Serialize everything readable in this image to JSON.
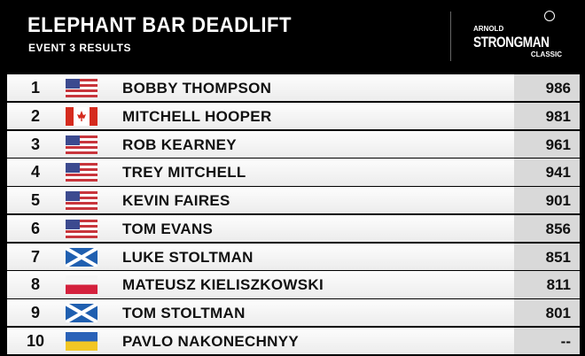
{
  "header": {
    "title": "ELEPHANT BAR DEADLIFT",
    "subtitle": "EVENT 3 RESULTS",
    "logo": {
      "line1": "ARNOLD",
      "line2": "STRONGMAN",
      "line3": "CLASSIC"
    }
  },
  "results": [
    {
      "rank": "1",
      "flag": "usa-flag-icon",
      "name": "BOBBY THOMPSON",
      "score": "986"
    },
    {
      "rank": "2",
      "flag": "canada-flag-icon",
      "name": "MITCHELL HOOPER",
      "score": "981"
    },
    {
      "rank": "3",
      "flag": "usa-flag-icon",
      "name": "ROB KEARNEY",
      "score": "961"
    },
    {
      "rank": "4",
      "flag": "usa-flag-icon",
      "name": "TREY MITCHELL",
      "score": "941"
    },
    {
      "rank": "5",
      "flag": "usa-flag-icon",
      "name": "KEVIN FAIRES",
      "score": "901"
    },
    {
      "rank": "6",
      "flag": "usa-flag-icon",
      "name": "TOM EVANS",
      "score": "856"
    },
    {
      "rank": "7",
      "flag": "scotland-flag-icon",
      "name": "LUKE STOLTMAN",
      "score": "851"
    },
    {
      "rank": "8",
      "flag": "poland-flag-icon",
      "name": "MATEUSZ KIELISZKOWSKI",
      "score": "811"
    },
    {
      "rank": "9",
      "flag": "scotland-flag-icon",
      "name": "TOM STOLTMAN",
      "score": "801"
    },
    {
      "rank": "10",
      "flag": "ukraine-flag-icon",
      "name": "PAVLO NAKONECHNYY",
      "score": "--"
    }
  ]
}
